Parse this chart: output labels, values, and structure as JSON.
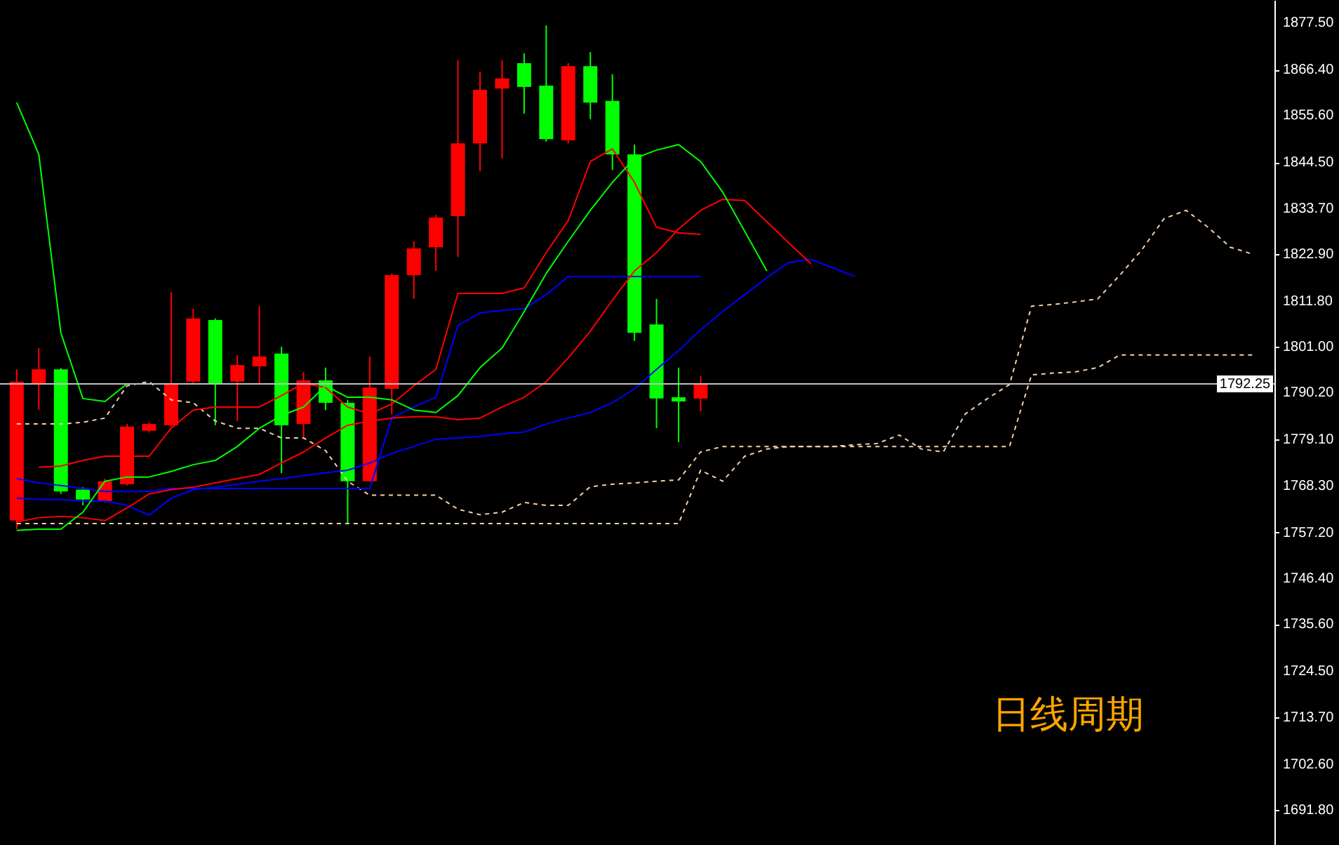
{
  "chart_data": {
    "type": "candlestick",
    "categories": [
      null,
      null,
      null,
      null,
      null,
      null,
      null,
      null,
      null,
      null,
      null,
      null,
      null,
      null,
      null,
      null,
      null,
      null,
      null,
      null,
      null,
      null,
      null,
      null,
      null,
      null,
      null,
      null,
      null,
      null,
      null,
      null,
      null,
      null,
      null,
      null,
      null,
      null,
      null,
      null,
      null,
      null,
      null,
      null,
      null,
      null,
      null,
      null,
      null,
      null,
      null,
      null,
      null,
      null,
      null,
      null,
      null
    ],
    "ohlc": [
      [
        1760.0,
        1795.7,
        1758.0,
        1792.8
      ],
      [
        1792.4,
        1800.7,
        1786.1,
        1795.7
      ],
      [
        1795.7,
        1796.0,
        1766.3,
        1766.9
      ],
      [
        1767.3,
        1767.9,
        1763.6,
        1765.0
      ],
      [
        1764.6,
        1769.9,
        1764.3,
        1769.3
      ],
      [
        1768.6,
        1782.8,
        1768.3,
        1782.2
      ],
      [
        1781.2,
        1783.2,
        1780.8,
        1782.8
      ],
      [
        1782.5,
        1813.9,
        1782.2,
        1792.4
      ],
      [
        1792.8,
        1810.0,
        1792.4,
        1807.7
      ],
      [
        1807.3,
        1807.7,
        1782.5,
        1792.4
      ],
      [
        1792.8,
        1799.0,
        1783.5,
        1796.7
      ],
      [
        1796.4,
        1810.6,
        1792.4,
        1798.7
      ],
      [
        1799.4,
        1801.0,
        1771.2,
        1782.5
      ],
      [
        1782.8,
        1795.1,
        1779.5,
        1793.1
      ],
      [
        1793.1,
        1796.1,
        1786.1,
        1787.8
      ],
      [
        1787.8,
        1788.5,
        1759.3,
        1769.3
      ],
      [
        1769.3,
        1798.7,
        1769.3,
        1791.4
      ],
      [
        1791.1,
        1818.3,
        1785.1,
        1817.9
      ],
      [
        1817.9,
        1825.9,
        1812.3,
        1824.2
      ],
      [
        1824.5,
        1832.1,
        1818.9,
        1831.5
      ],
      [
        1831.8,
        1868.6,
        1822.2,
        1849.0
      ],
      [
        1849.0,
        1865.9,
        1842.4,
        1861.6
      ],
      [
        1861.9,
        1868.6,
        1845.4,
        1864.3
      ],
      [
        1867.9,
        1870.2,
        1856.0,
        1862.3
      ],
      [
        1862.6,
        1876.8,
        1849.4,
        1850.0
      ],
      [
        1849.7,
        1867.9,
        1849.0,
        1867.2
      ],
      [
        1867.2,
        1870.5,
        1854.7,
        1858.6
      ],
      [
        1859.0,
        1865.3,
        1842.7,
        1846.4
      ],
      [
        1846.4,
        1848.7,
        1802.4,
        1804.3
      ],
      [
        1806.3,
        1812.3,
        1781.8,
        1788.8
      ],
      [
        1789.1,
        1796.1,
        1778.5,
        1788.1
      ],
      [
        1788.8,
        1794.1,
        1785.8,
        1792.25
      ],
      null,
      null,
      null,
      null,
      null,
      null,
      null,
      null,
      null,
      null,
      null,
      null,
      null,
      null,
      null,
      null,
      null,
      null,
      null,
      null,
      null,
      null,
      null,
      null,
      null
    ],
    "colors": [
      "#ff0000",
      "#ff0000",
      "#00ff00",
      "#00ff00",
      "#ff0000",
      "#ff0000",
      "#ff0000",
      "#ff0000",
      "#ff0000",
      "#00ff00",
      "#ff0000",
      "#ff0000",
      "#00ff00",
      "#ff0000",
      "#00ff00",
      "#00ff00",
      "#ff0000",
      "#ff0000",
      "#ff0000",
      "#ff0000",
      "#ff0000",
      "#ff0000",
      "#ff0000",
      "#00ff00",
      "#00ff00",
      "#ff0000",
      "#00ff00",
      "#00ff00",
      "#00ff00",
      "#00ff00",
      "#00ff00",
      "#ff0000",
      null,
      null,
      null,
      null,
      null,
      null,
      null,
      null,
      null,
      null,
      null,
      null,
      null,
      null,
      null,
      null,
      null,
      null,
      null,
      null,
      null,
      null,
      null,
      null,
      null
    ],
    "series": [
      {
        "type": "line",
        "color": "#f5d0a9",
        "line_style": "dashed",
        "values": [
          1782.8,
          1782.8,
          1782.8,
          1783.2,
          1784.2,
          1791.8,
          1792.8,
          1788.5,
          1787.8,
          1783.5,
          1781.8,
          1781.8,
          1779.5,
          1779.5,
          1776.5,
          1769.3,
          1766.0,
          1766.0,
          1766.0,
          1766.0,
          1762.7,
          1761.4,
          1762.0,
          1764.3,
          1763.6,
          1763.6,
          1768.0,
          1768.6,
          1768.9,
          1769.3,
          1769.6,
          1776.2,
          1777.5,
          1777.5,
          1777.5,
          1777.5,
          1777.5,
          1777.5,
          1777.9,
          1778.2,
          1780.2,
          1776.9,
          1776.2,
          1785.2,
          1788.8,
          1792.1,
          1810.6,
          1811.0,
          1811.6,
          1812.3,
          1817.9,
          1823.9,
          1831.2,
          1833.2,
          1829.2,
          1824.5,
          1822.9
        ]
      },
      {
        "type": "line",
        "color": "#f5d0a9",
        "line_style": "dashed",
        "values": [
          1759.3,
          1759.3,
          1759.3,
          1759.3,
          1759.3,
          1759.3,
          1759.3,
          1759.3,
          1759.3,
          1759.3,
          1759.3,
          1759.3,
          1759.3,
          1759.3,
          1759.3,
          1759.3,
          1759.3,
          1759.3,
          1759.3,
          1759.3,
          1759.3,
          1759.3,
          1759.3,
          1759.3,
          1759.3,
          1759.3,
          1759.3,
          1759.3,
          1759.3,
          1759.3,
          1759.3,
          1771.9,
          1769.3,
          1775.2,
          1776.9,
          1777.5,
          1777.5,
          1777.5,
          1777.5,
          1777.5,
          1777.5,
          1777.5,
          1777.5,
          1777.5,
          1777.5,
          1777.5,
          1794.4,
          1794.8,
          1795.1,
          1796.1,
          1799.1,
          1799.1,
          1799.1,
          1799.1,
          1799.1,
          1799.1,
          1799.1
        ]
      },
      {
        "type": "line",
        "color": "#00ff00",
        "values": [
          1858.6,
          1846.4,
          1804.3,
          1788.8,
          1788.1,
          1792.3,
          null,
          null,
          null,
          null,
          null,
          null,
          null,
          null,
          null,
          null,
          null,
          null,
          null,
          null,
          null,
          null,
          null,
          null,
          null,
          null,
          null,
          null,
          null,
          null,
          null,
          null,
          null,
          null,
          null,
          null,
          null,
          null,
          null,
          null,
          null,
          null,
          null,
          null,
          null,
          null,
          null,
          null,
          null,
          null,
          null,
          null,
          null,
          null,
          null,
          null,
          null
        ]
      },
      {
        "type": "line",
        "color": "#ff0000",
        "values": [
          null,
          1772.6,
          1772.9,
          1774.2,
          1775.2,
          1775.2,
          1775.2,
          1781.8,
          1786.1,
          1786.8,
          1786.8,
          1786.8,
          1789.5,
          1792.4,
          1791.4,
          1786.8,
          1785.2,
          1787.5,
          1791.8,
          1795.7,
          1813.6,
          1813.6,
          1813.6,
          1814.9,
          1823.2,
          1830.8,
          1844.7,
          1847.7,
          1839.8,
          1829.2,
          1827.9,
          1827.5,
          null,
          null,
          null,
          null,
          null,
          null,
          null,
          null,
          null,
          null,
          null,
          null,
          null,
          null,
          null,
          null,
          null,
          null,
          null,
          null,
          null,
          null,
          null,
          null,
          null
        ]
      },
      {
        "type": "line",
        "color": "#0000ff",
        "values": [
          1769.9,
          1768.9,
          1768.3,
          1767.6,
          1766.9,
          1766.9,
          1766.9,
          1767.6,
          1767.6,
          1767.6,
          1767.6,
          1767.6,
          1767.6,
          1767.6,
          1767.6,
          1767.6,
          1767.6,
          1784.2,
          1786.8,
          1789.1,
          1806.0,
          1809.0,
          1809.6,
          1810.0,
          1813.3,
          1817.6,
          1817.6,
          1817.6,
          1817.6,
          1817.6,
          1817.6,
          1817.6,
          null,
          null,
          null,
          null,
          null,
          null,
          null,
          null,
          null,
          null,
          null,
          null,
          null,
          null,
          null,
          null,
          null,
          null,
          null,
          null,
          null,
          null,
          null,
          null,
          null
        ]
      },
      {
        "type": "line",
        "color": "#0000ff",
        "values": [
          1765.3,
          1765.0,
          1765.0,
          1764.6,
          1764.6,
          1763.6,
          1761.3,
          1765.3,
          1767.3,
          1767.9,
          1768.6,
          1769.3,
          1769.9,
          1770.6,
          1771.3,
          1771.9,
          1773.6,
          1775.9,
          1777.5,
          1779.2,
          1779.5,
          1779.9,
          1780.5,
          1780.9,
          1782.8,
          1784.2,
          1785.5,
          1787.8,
          1791.1,
          1795.7,
          1800.1,
          1805.0,
          1809.3,
          1813.3,
          1817.3,
          1820.9,
          1821.6,
          1819.6,
          1817.6,
          null,
          null,
          null,
          null,
          null,
          null,
          null,
          null,
          null,
          null,
          null,
          null,
          null,
          null,
          null,
          null,
          null,
          null
        ]
      },
      {
        "type": "line",
        "color": "#ff0000",
        "values": [
          1759.7,
          1760.7,
          1761.0,
          1760.7,
          1760.0,
          1763.0,
          1766.3,
          1767.3,
          1767.9,
          1768.9,
          1769.9,
          1770.9,
          1773.6,
          1776.2,
          1779.5,
          1782.5,
          1783.5,
          1784.2,
          1784.5,
          1784.5,
          1783.8,
          1784.2,
          1786.8,
          1789.1,
          1792.8,
          1798.4,
          1804.7,
          1812.0,
          1818.9,
          1823.2,
          1828.8,
          1833.2,
          1835.8,
          1835.5,
          1830.5,
          1825.5,
          1820.6,
          null,
          null,
          null,
          null,
          null,
          null,
          null,
          null,
          null,
          null,
          null,
          null,
          null,
          null,
          null,
          null,
          null,
          null,
          null,
          null
        ]
      },
      {
        "type": "line",
        "color": "#00ff00",
        "values": [
          1757.7,
          1758.0,
          1758.0,
          1762.0,
          1769.3,
          1770.3,
          1770.3,
          1771.6,
          1773.2,
          1774.2,
          1777.5,
          1781.8,
          1784.8,
          1786.8,
          1791.8,
          1789.1,
          1789.1,
          1788.5,
          1786.1,
          1785.5,
          1789.5,
          1796.1,
          1800.7,
          1809.3,
          1818.3,
          1825.9,
          1833.2,
          1839.8,
          1845.4,
          1847.4,
          1848.7,
          1844.7,
          1837.5,
          1828.2,
          1818.9,
          null,
          null,
          null,
          null,
          null,
          null,
          null,
          null,
          null,
          null,
          null,
          null,
          null,
          null,
          null,
          null,
          null,
          null,
          null,
          null,
          null,
          null
        ]
      }
    ],
    "ylim": [
      1683.5,
      1882.8
    ],
    "yticks": [
      {
        "value": 1877.5,
        "label": "1877.50"
      },
      {
        "value": 1866.4,
        "label": "1866.40"
      },
      {
        "value": 1855.6,
        "label": "1855.60"
      },
      {
        "value": 1844.5,
        "label": "1844.50"
      },
      {
        "value": 1833.7,
        "label": "1833.70"
      },
      {
        "value": 1822.9,
        "label": "1822.90"
      },
      {
        "value": 1811.8,
        "label": "1811.80"
      },
      {
        "value": 1801.0,
        "label": "1801.00"
      },
      {
        "value": 1790.2,
        "label": "1790.20"
      },
      {
        "value": 1779.1,
        "label": "1779.10"
      },
      {
        "value": 1768.3,
        "label": "1768.30"
      },
      {
        "value": 1757.2,
        "label": "1757.20"
      },
      {
        "value": 1746.4,
        "label": "1746.40"
      },
      {
        "value": 1735.6,
        "label": "1735.60"
      },
      {
        "value": 1724.5,
        "label": "1724.50"
      },
      {
        "value": 1713.7,
        "label": "1713.70"
      },
      {
        "value": 1702.6,
        "label": "1702.60"
      },
      {
        "value": 1691.8,
        "label": "1691.80"
      }
    ],
    "tick_labels": "y",
    "ref_lines": [
      {
        "axis": "y",
        "value": 1792.25,
        "label": "1792.25",
        "color": "#c0c0c0"
      }
    ],
    "annotations": [
      "日线周期"
    ]
  }
}
